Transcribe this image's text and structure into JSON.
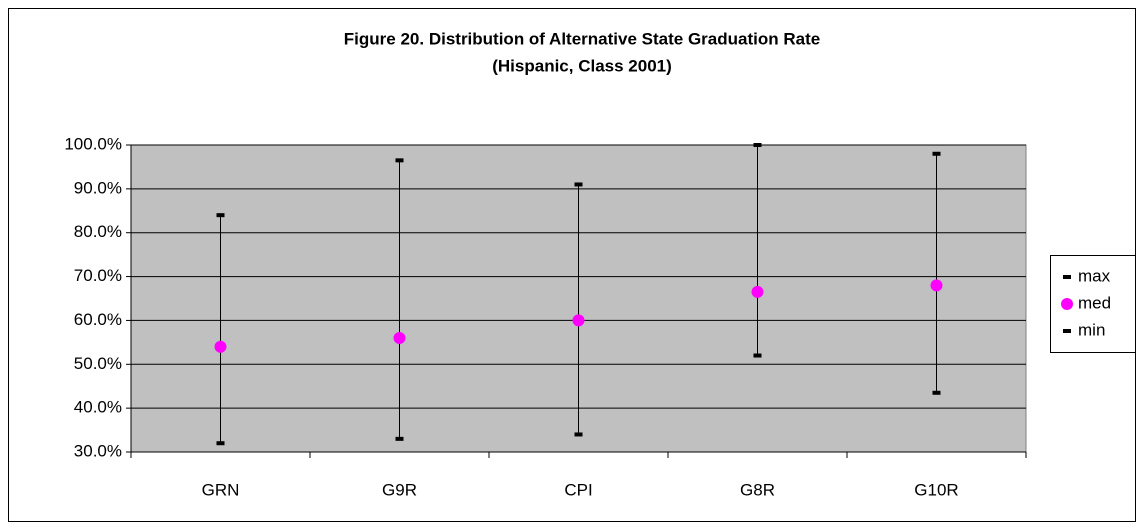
{
  "chart_data": {
    "type": "high-low",
    "title": [
      "Figure 20. Distribution of Alternative State Graduation Rate",
      "(Hispanic, Class 2001)"
    ],
    "categories": [
      "GRN",
      "G9R",
      "CPI",
      "G8R",
      "G10R"
    ],
    "series": [
      {
        "name": "max",
        "color": "#000000",
        "marker": "dash",
        "values": [
          84,
          96.5,
          91,
          100,
          98
        ]
      },
      {
        "name": "med",
        "color": "#ff00ff",
        "marker": "circle",
        "values": [
          54,
          56,
          60,
          66.5,
          68
        ]
      },
      {
        "name": "min",
        "color": "#000000",
        "marker": "dash",
        "values": [
          32,
          33,
          34,
          52,
          43.5
        ]
      }
    ],
    "ylim": [
      30,
      100
    ],
    "yticks": [
      {
        "value": 30,
        "label": "30.0%"
      },
      {
        "value": 40,
        "label": "40.0%"
      },
      {
        "value": 50,
        "label": "50.0%"
      },
      {
        "value": 60,
        "label": "60.0%"
      },
      {
        "value": 70,
        "label": "70.0%"
      },
      {
        "value": 80,
        "label": "80.0%"
      },
      {
        "value": 90,
        "label": "90.0%"
      },
      {
        "value": 100,
        "label": "100.0%"
      }
    ],
    "grid": true,
    "legend": "right",
    "plot_background": "#c0c0c0"
  }
}
